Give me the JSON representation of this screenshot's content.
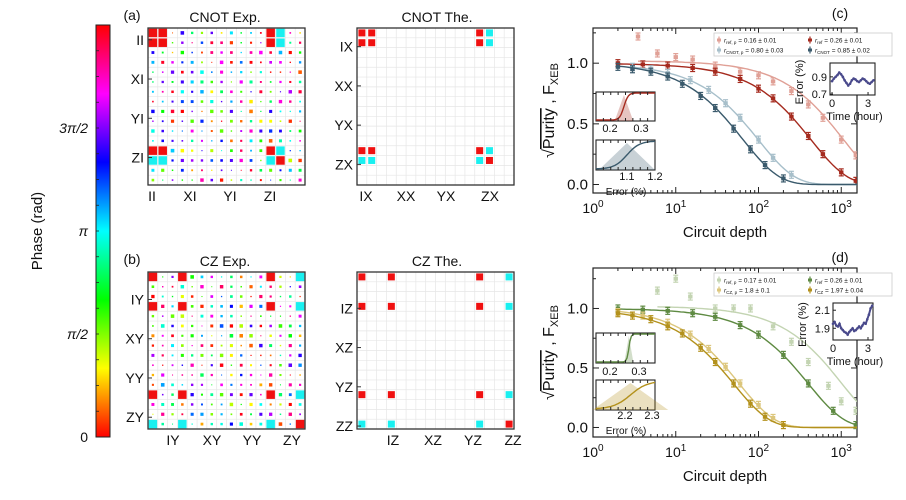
{
  "colorbar": {
    "label": "Phase (rad)",
    "range_pi": [
      0,
      2
    ],
    "ticks": [
      {
        "label": "0",
        "value_pi": 0
      },
      {
        "label": "π/2",
        "value_pi": 0.5
      },
      {
        "label": "π",
        "value_pi": 1
      },
      {
        "label": "3π/2",
        "value_pi": 1.5
      }
    ]
  },
  "matrices": [
    {
      "panel": "(a)",
      "title": "CNOT Exp.",
      "kind": "experiment",
      "seed": 7,
      "y_labels": [
        "II",
        "XI",
        "YI",
        "ZI"
      ],
      "x_labels": [
        "II",
        "XI",
        "YI",
        "ZI"
      ],
      "nonzero_rows": [
        0,
        1,
        12,
        13
      ],
      "nonzero_cols": [
        0,
        1,
        12,
        13
      ],
      "phase_pi_cells": [
        [
          0,
          13
        ],
        [
          1,
          13
        ],
        [
          12,
          13
        ],
        [
          13,
          0
        ],
        [
          13,
          1
        ],
        [
          13,
          12
        ]
      ]
    },
    {
      "panel": "",
      "title": "CNOT The.",
      "kind": "theory",
      "y_labels": [
        "IX",
        "XX",
        "YX",
        "ZX"
      ],
      "x_labels": [
        "IX",
        "XX",
        "YX",
        "ZX"
      ],
      "nonzero_rows": [
        0,
        1,
        12,
        13
      ],
      "nonzero_cols": [
        0,
        1,
        12,
        13
      ],
      "phase_pi_cells": [
        [
          0,
          13
        ],
        [
          1,
          13
        ],
        [
          12,
          13
        ],
        [
          13,
          0
        ],
        [
          13,
          1
        ],
        [
          13,
          12
        ]
      ]
    },
    {
      "panel": "(b)",
      "title": "CZ Exp.",
      "kind": "experiment",
      "seed": 19,
      "y_labels": [
        "IY",
        "XY",
        "YY",
        "ZY"
      ],
      "x_labels": [
        "IY",
        "XY",
        "YY",
        "ZY"
      ],
      "nonzero_rows": [
        0,
        3,
        12,
        15
      ],
      "nonzero_cols": [
        0,
        3,
        12,
        15
      ],
      "phase_pi_cells": [
        [
          0,
          15
        ],
        [
          3,
          15
        ],
        [
          12,
          15
        ],
        [
          15,
          0
        ],
        [
          15,
          3
        ],
        [
          15,
          12
        ]
      ]
    },
    {
      "panel": "",
      "title": "CZ The.",
      "kind": "theory",
      "y_labels": [
        "IZ",
        "XZ",
        "YZ",
        "ZZ"
      ],
      "x_labels": [
        "IZ",
        "XZ",
        "YZ",
        "ZZ"
      ],
      "nonzero_rows": [
        0,
        3,
        12,
        15
      ],
      "nonzero_cols": [
        0,
        3,
        12,
        15
      ],
      "phase_pi_cells": [
        [
          0,
          15
        ],
        [
          3,
          15
        ],
        [
          12,
          15
        ],
        [
          15,
          0
        ],
        [
          15,
          3
        ],
        [
          15,
          12
        ]
      ]
    }
  ],
  "chart_data": [
    {
      "panel": "(c)",
      "type": "scatter",
      "xlabel": "Circuit depth",
      "xscale": "log",
      "xlim": [
        1,
        1550
      ],
      "x_ticks": [
        {
          "base": "10",
          "exp": "0",
          "value": 1
        },
        {
          "base": "10",
          "exp": "1",
          "value": 10
        },
        {
          "base": "10",
          "exp": "2",
          "value": 100
        },
        {
          "base": "10",
          "exp": "3",
          "value": 1000
        }
      ],
      "ylabel": {
        "sqrt": "√",
        "main": "Purity",
        "sep": " , F",
        "sub": "XEB"
      },
      "ylim": [
        -0.07,
        1.29
      ],
      "y_ticks": [
        "0.0",
        "0.5",
        "1.0"
      ],
      "y_tick_values": [
        0,
        0.5,
        1.0
      ],
      "legend_position": "top-right",
      "series": [
        {
          "name": "r_ref,p",
          "sym": "r",
          "sub": "ref, p",
          "value": " = 0.16 ± 0.01",
          "color": "#e0a096",
          "fit_decay_depth": 1050,
          "points": [
            [
              3.5,
              1.22
            ],
            [
              6,
              1.08
            ],
            [
              10,
              1.05
            ],
            [
              16,
              1.03
            ],
            [
              30,
              0.98
            ],
            [
              60,
              0.93
            ],
            [
              100,
              0.9
            ],
            [
              150,
              0.85
            ],
            [
              250,
              0.77
            ],
            [
              400,
              0.66
            ],
            [
              600,
              0.55
            ],
            [
              1000,
              0.37
            ],
            [
              1500,
              0.24
            ]
          ]
        },
        {
          "name": "r_ref",
          "sym": "r",
          "sub": "ref",
          "value": " = 0.26 ± 0.01",
          "color": "#a52a1e",
          "fit_decay_depth": 433,
          "points": [
            [
              2,
              1.0
            ],
            [
              4,
              0.99
            ],
            [
              8,
              0.98
            ],
            [
              16,
              0.96
            ],
            [
              30,
              0.93
            ],
            [
              60,
              0.87
            ],
            [
              100,
              0.79
            ],
            [
              150,
              0.71
            ],
            [
              250,
              0.56
            ],
            [
              400,
              0.4
            ],
            [
              600,
              0.25
            ],
            [
              1000,
              0.1
            ],
            [
              1500,
              0.03
            ]
          ]
        },
        {
          "name": "r_CNOT,p",
          "sym": "r",
          "sub": "CNOT, p",
          "value": " = 0.80 ± 0.03",
          "color": "#a7bfca",
          "fit_decay_depth": 100,
          "points": [
            [
              3,
              0.97
            ],
            [
              5,
              0.95
            ],
            [
              8,
              0.92
            ],
            [
              15,
              0.86
            ],
            [
              25,
              0.78
            ],
            [
              40,
              0.67
            ],
            [
              60,
              0.55
            ],
            [
              100,
              0.37
            ],
            [
              150,
              0.22
            ],
            [
              250,
              0.08
            ]
          ]
        },
        {
          "name": "r_CNOT",
          "sym": "r",
          "sub": "CNOT",
          "value": " = 0.85 ± 0.02",
          "color": "#3a5a6c",
          "fit_decay_depth": 65,
          "points": [
            [
              2,
              0.97
            ],
            [
              3,
              0.95
            ],
            [
              5,
              0.93
            ],
            [
              8,
              0.89
            ],
            [
              12,
              0.83
            ],
            [
              20,
              0.73
            ],
            [
              30,
              0.63
            ],
            [
              50,
              0.46
            ],
            [
              80,
              0.29
            ],
            [
              120,
              0.16
            ],
            [
              200,
              0.05
            ]
          ]
        }
      ],
      "insets": {
        "histograms": [
          {
            "color": "#a52a1e",
            "xlim": [
              0.155,
              0.345
            ],
            "ticks": [
              0.2,
              0.3
            ],
            "tick_labels": [
              "0.2",
              "0.3"
            ],
            "center": 0.245,
            "spread": 0.015,
            "xlabel": ""
          },
          {
            "color": "#3a5a6c",
            "xlim": [
              0.99,
              1.2
            ],
            "ticks": [
              1.1,
              1.2
            ],
            "tick_labels": [
              "1.1",
              "1.2"
            ],
            "center": 1.1,
            "spread": 0.05,
            "xlabel": "Error (%)"
          }
        ],
        "timeseries": {
          "color": "#4a4a8c",
          "xlabel": "Time (hour)",
          "ylabel": "Error (%)",
          "xlim": [
            -0.17,
            3.58
          ],
          "ylim": [
            0.69,
            1.06
          ],
          "x_ticks": [
            0,
            3
          ],
          "x_tick_labels": [
            "0",
            "3"
          ],
          "y_ticks": [
            0.7,
            0.9
          ],
          "y_tick_labels": [
            "0.7",
            "0.9"
          ],
          "time": [
            0,
            0.15,
            0.3,
            0.45,
            0.6,
            0.75,
            0.9,
            1.05,
            1.2,
            1.35,
            1.5,
            1.65,
            1.8,
            1.95,
            2.1,
            2.25,
            2.4,
            2.55,
            2.7,
            2.85,
            3.0,
            3.15,
            3.3,
            3.45
          ],
          "values": [
            0.85,
            0.88,
            0.9,
            0.92,
            0.95,
            0.93,
            0.9,
            0.86,
            0.83,
            0.8,
            0.82,
            0.86,
            0.88,
            0.87,
            0.85,
            0.84,
            0.86,
            0.88,
            0.87,
            0.85,
            0.83,
            0.82,
            0.84,
            0.86
          ]
        }
      }
    },
    {
      "panel": "(d)",
      "type": "scatter",
      "xlabel": "Circuit depth",
      "xscale": "log",
      "xlim": [
        1,
        1550
      ],
      "x_ticks": [
        {
          "base": "10",
          "exp": "0",
          "value": 1
        },
        {
          "base": "10",
          "exp": "1",
          "value": 10
        },
        {
          "base": "10",
          "exp": "2",
          "value": 100
        },
        {
          "base": "10",
          "exp": "3",
          "value": 1000
        }
      ],
      "ylabel": {
        "sqrt": "√",
        "main": "Purity",
        "sep": " , F",
        "sub": "XEB"
      },
      "ylim": [
        -0.08,
        1.34
      ],
      "y_ticks": [
        "0.0",
        "0.5",
        "1.0"
      ],
      "y_tick_values": [
        0,
        0.5,
        1.0
      ],
      "legend_position": "top-right",
      "series": [
        {
          "name": "r_ref,p",
          "sym": "r",
          "sub": "ref, p",
          "value": " = 0.17 ± 0.01",
          "color": "#c3d4b2",
          "fit_decay_depth": 1000,
          "points": [
            [
              6,
              1.15
            ],
            [
              10,
              1.25
            ],
            [
              15,
              1.1
            ],
            [
              30,
              1.0
            ],
            [
              50,
              1.0
            ],
            [
              80,
              1.0
            ],
            [
              150,
              0.85
            ],
            [
              250,
              0.72
            ],
            [
              400,
              0.55
            ],
            [
              700,
              0.35
            ],
            [
              1000,
              0.22
            ],
            [
              1500,
              0.14
            ]
          ]
        },
        {
          "name": "r_ref",
          "sym": "r",
          "sub": "ref",
          "value": " = 0.26 ± 0.01",
          "color": "#5e8a42",
          "fit_decay_depth": 400,
          "points": [
            [
              2,
              1.0
            ],
            [
              4,
              0.99
            ],
            [
              8,
              0.98
            ],
            [
              16,
              0.96
            ],
            [
              30,
              0.93
            ],
            [
              60,
              0.86
            ],
            [
              100,
              0.78
            ],
            [
              200,
              0.61
            ],
            [
              400,
              0.37
            ],
            [
              800,
              0.14
            ],
            [
              1500,
              0.02
            ]
          ]
        },
        {
          "name": "r_CZ,p",
          "sym": "r",
          "sub": "CZ, p",
          "value": " = 1.8 ± 0.1",
          "color": "#dcc67c",
          "fit_decay_depth": 58,
          "points": [
            [
              2,
              0.97
            ],
            [
              4,
              0.94
            ],
            [
              8,
              0.88
            ],
            [
              15,
              0.78
            ],
            [
              25,
              0.66
            ],
            [
              40,
              0.51
            ],
            [
              60,
              0.37
            ],
            [
              100,
              0.19
            ],
            [
              150,
              0.08
            ]
          ]
        },
        {
          "name": "r_CZ",
          "sym": "r",
          "sub": "CZ",
          "value": " = 1.97 ± 0.04",
          "color": "#b3911c",
          "fit_decay_depth": 50,
          "points": [
            [
              2,
              0.96
            ],
            [
              3,
              0.94
            ],
            [
              5,
              0.91
            ],
            [
              8,
              0.85
            ],
            [
              12,
              0.79
            ],
            [
              20,
              0.67
            ],
            [
              30,
              0.55
            ],
            [
              50,
              0.37
            ],
            [
              80,
              0.2
            ],
            [
              120,
              0.09
            ],
            [
              200,
              0.02
            ]
          ]
        }
      ],
      "insets": {
        "histograms": [
          {
            "color": "#5e8a42",
            "xlim": [
              0.152,
              0.355
            ],
            "ticks": [
              0.2,
              0.3
            ],
            "tick_labels": [
              "0.2",
              "0.3"
            ],
            "center": 0.265,
            "spread": 0.008,
            "xlabel": ""
          },
          {
            "color": "#b3911c",
            "xlim": [
              2.093,
              2.311
            ],
            "ticks": [
              2.2,
              2.3
            ],
            "tick_labels": [
              "2.2",
              "2.3"
            ],
            "center": 2.22,
            "spread": 0.07,
            "xlabel": "Error (%)"
          }
        ],
        "timeseries": {
          "color": "#4a4a8c",
          "xlabel": "Time (hour)",
          "ylabel": "Error (%)",
          "xlim": [
            0,
            3.43
          ],
          "ylim": [
            1.77,
            2.18
          ],
          "x_ticks": [
            0,
            3
          ],
          "x_tick_labels": [
            "0",
            "3"
          ],
          "y_ticks": [
            1.9,
            2.1
          ],
          "y_tick_labels": [
            "1.9",
            "2.1"
          ],
          "time": [
            0,
            0.14,
            0.28,
            0.42,
            0.56,
            0.7,
            0.84,
            0.98,
            1.12,
            1.26,
            1.4,
            1.54,
            1.68,
            1.82,
            1.96,
            2.1,
            2.24,
            2.38,
            2.52,
            2.66,
            2.8,
            2.94,
            3.08,
            3.22,
            3.36
          ],
          "values": [
            1.95,
            1.97,
            1.93,
            1.92,
            1.95,
            1.9,
            1.88,
            1.86,
            1.85,
            1.83,
            1.86,
            1.88,
            1.9,
            1.87,
            1.88,
            1.9,
            1.92,
            1.9,
            1.93,
            1.96,
            1.95,
            2.0,
            2.05,
            2.12,
            2.15
          ]
        }
      }
    }
  ]
}
